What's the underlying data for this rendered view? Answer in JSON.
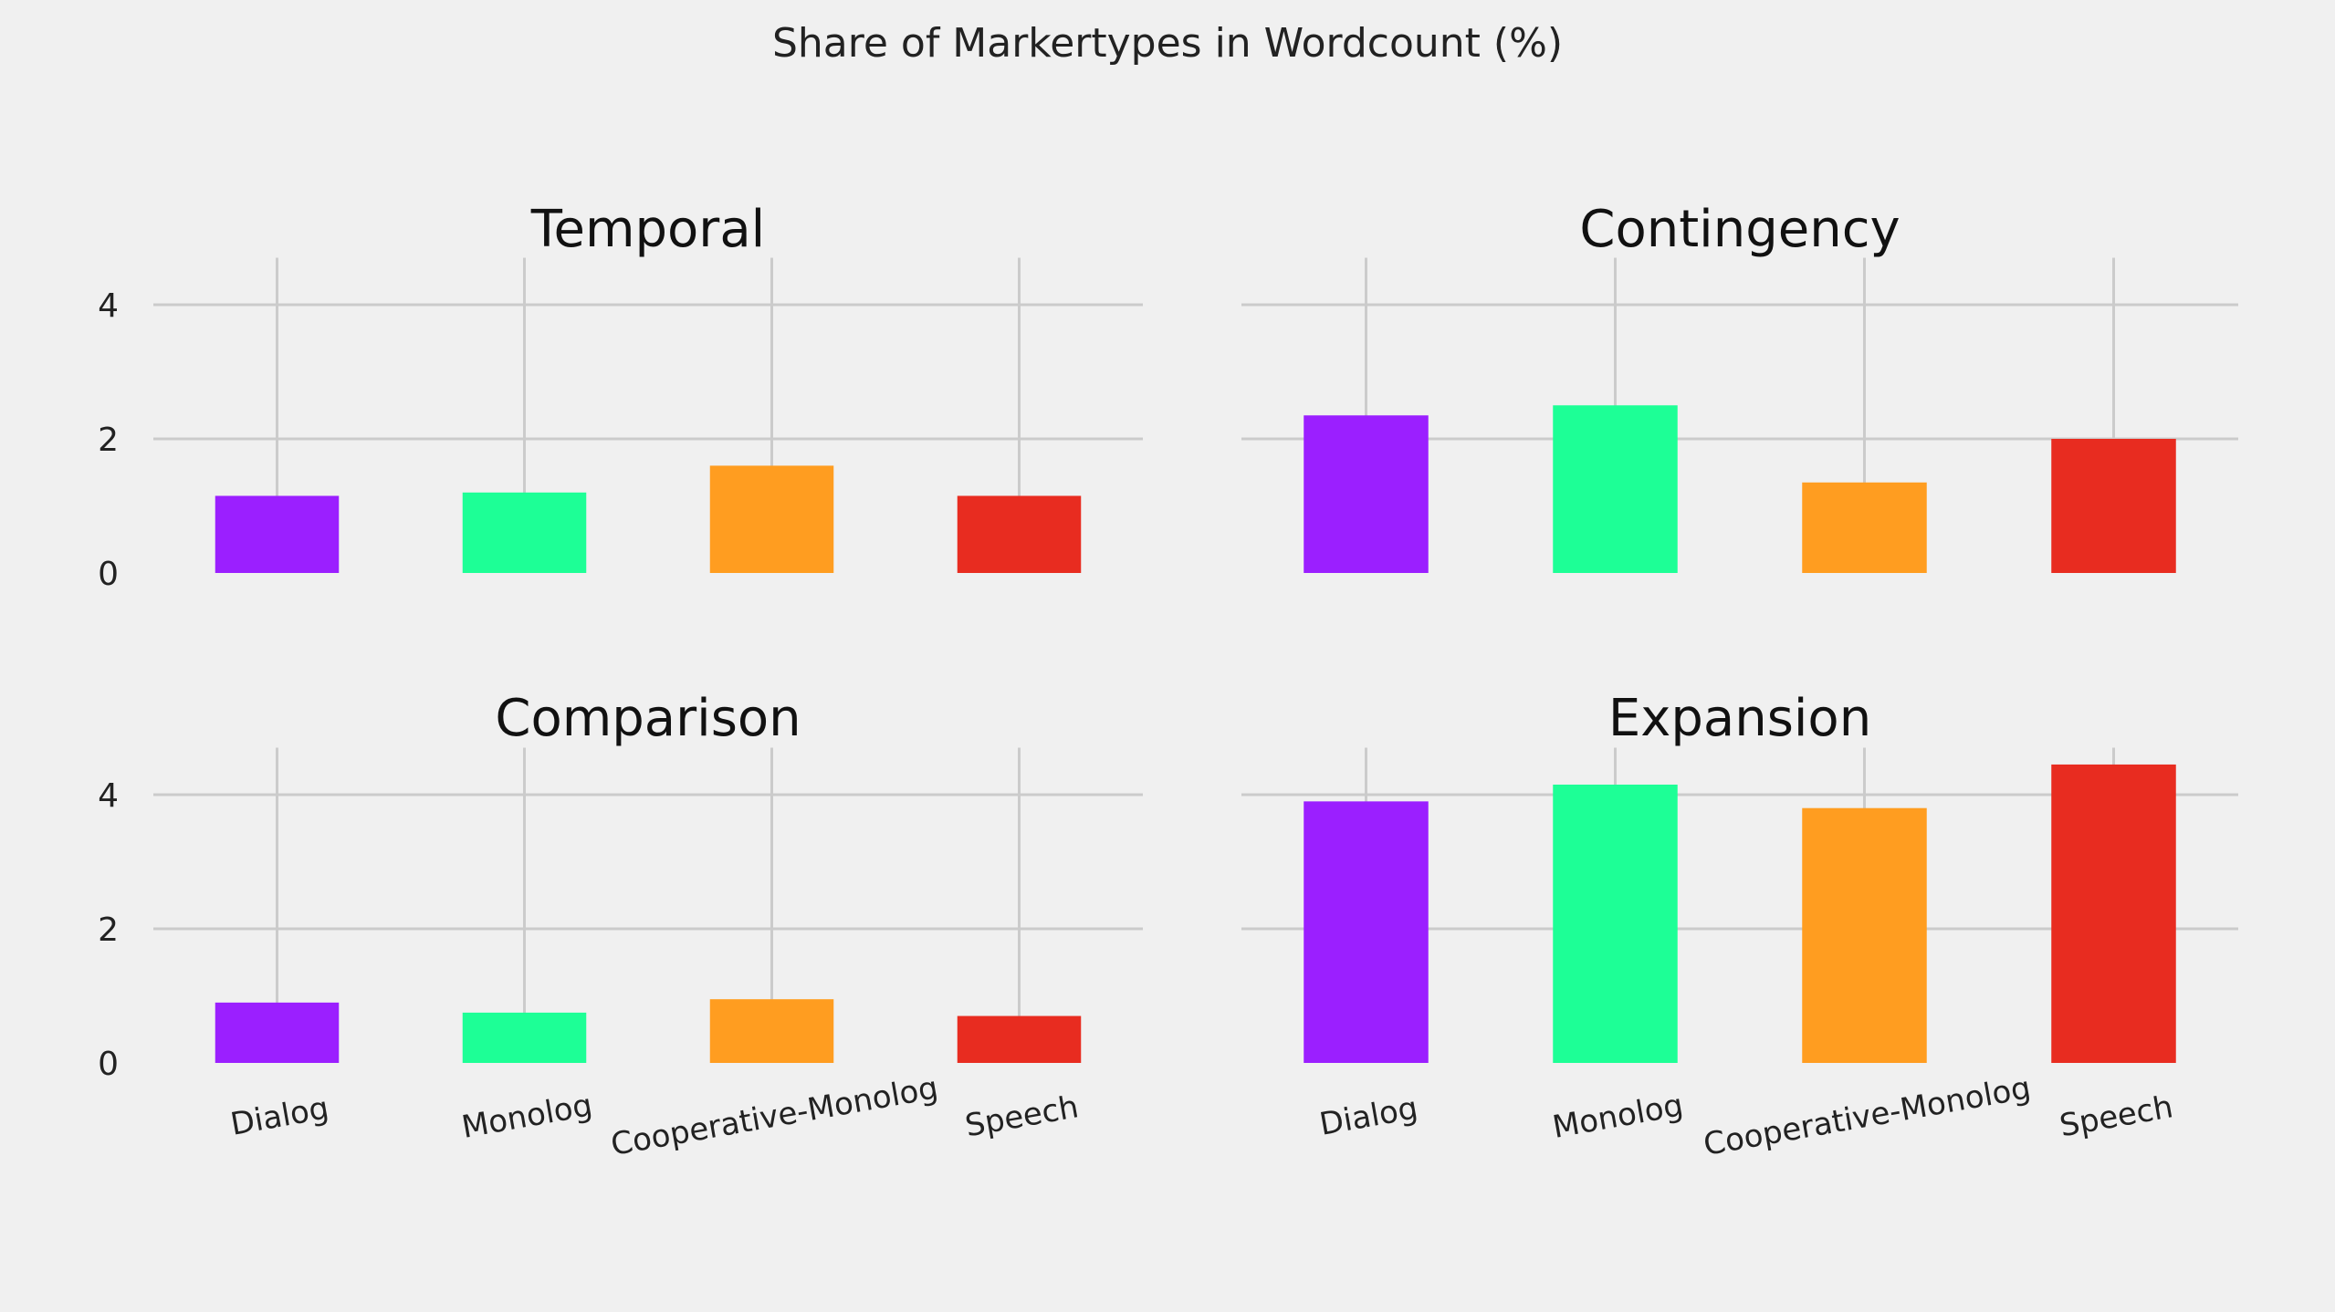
{
  "chart_data": {
    "type": "bar",
    "title": "Share of Markertypes in Wordcount (%)",
    "categories": [
      "Dialog",
      "Monolog",
      "Cooperative-Monolog",
      "Speech"
    ],
    "colors": [
      "#9b1fff",
      "#1dff96",
      "#ff9d20",
      "#e82c20"
    ],
    "ylim": [
      0,
      4.7
    ],
    "yticks": [
      0,
      2,
      4
    ],
    "grid": true,
    "sharey": true,
    "panels": [
      {
        "title": "Temporal",
        "values": [
          1.15,
          1.2,
          1.6,
          1.15
        ]
      },
      {
        "title": "Contingency",
        "values": [
          2.35,
          2.5,
          1.35,
          2.0
        ]
      },
      {
        "title": "Comparison",
        "values": [
          0.9,
          0.75,
          0.95,
          0.7
        ]
      },
      {
        "title": "Expansion",
        "values": [
          3.9,
          4.15,
          3.8,
          4.45
        ]
      }
    ]
  }
}
